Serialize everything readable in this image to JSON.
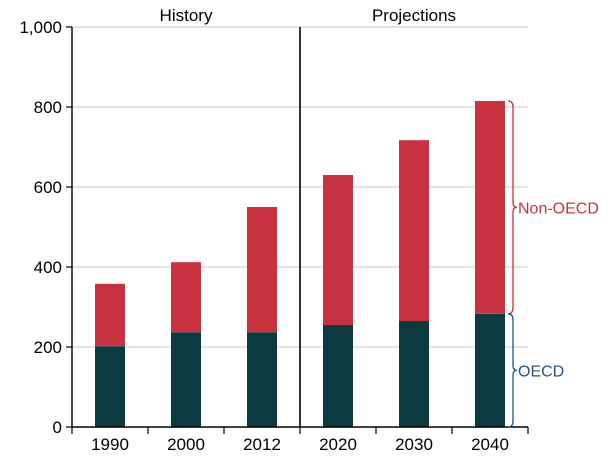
{
  "chart_data": {
    "type": "bar",
    "stacked": true,
    "categories": [
      "1990",
      "2000",
      "2012",
      "2020",
      "2030",
      "2040"
    ],
    "series": [
      {
        "name": "OECD",
        "values": [
          202,
          237,
          237,
          255,
          265,
          283
        ],
        "color": "#0b3a40"
      },
      {
        "name": "Non-OECD",
        "values": [
          156,
          175,
          313,
          375,
          452,
          532
        ],
        "color": "#c8323f"
      }
    ],
    "ylim": [
      0,
      1000
    ],
    "yticks": [
      "0",
      "200",
      "400",
      "600",
      "800",
      "1,000"
    ],
    "ytick_values": [
      0,
      200,
      400,
      600,
      800,
      1000
    ],
    "grid": true,
    "sections": [
      {
        "label": "History",
        "categories": [
          "1990",
          "2000",
          "2012"
        ]
      },
      {
        "label": "Projections",
        "categories": [
          "2020",
          "2030",
          "2040"
        ]
      }
    ],
    "annotations": [
      {
        "label": "Non-OECD",
        "series": "Non-OECD",
        "color": "#c8323f"
      },
      {
        "label": "OECD",
        "series": "OECD",
        "color": "#2a5478"
      }
    ],
    "legend": "bracket labels to the right of the last bar"
  }
}
